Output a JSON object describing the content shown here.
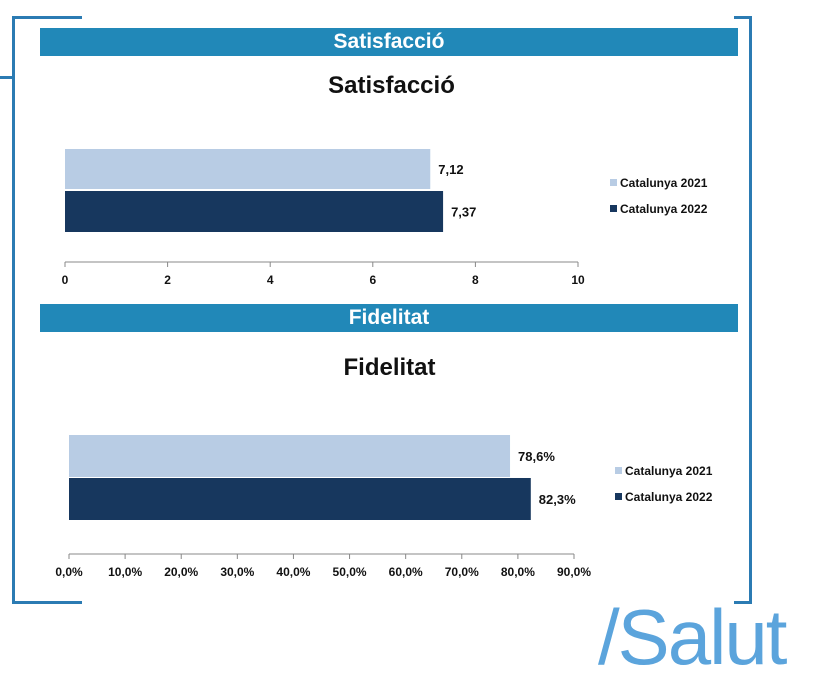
{
  "panels": [
    {
      "banner": "Satisfacció"
    },
    {
      "banner": "Fidelitat"
    }
  ],
  "logo_text": "/Salut",
  "colors": {
    "banner": "#2188b8",
    "series_2021": "#b8cce4",
    "series_2022": "#17375e",
    "frame": "#2b7bb3"
  },
  "chart_data": [
    {
      "type": "bar",
      "orientation": "horizontal",
      "title": "Satisfacció",
      "series": [
        {
          "name": "Catalunya 2021",
          "values": [
            7.12
          ],
          "labels": [
            "7,12"
          ]
        },
        {
          "name": "Catalunya 2022",
          "values": [
            7.37
          ],
          "labels": [
            "7,37"
          ]
        }
      ],
      "xlim": [
        0,
        10
      ],
      "ticks": [
        0,
        2,
        4,
        6,
        8,
        10
      ],
      "tick_labels": [
        "0",
        "2",
        "4",
        "6",
        "8",
        "10"
      ],
      "legend": "right"
    },
    {
      "type": "bar",
      "orientation": "horizontal",
      "title": "Fidelitat",
      "series": [
        {
          "name": "Catalunya 2021",
          "values": [
            78.6
          ],
          "labels": [
            "78,6%"
          ]
        },
        {
          "name": "Catalunya 2022",
          "values": [
            82.3
          ],
          "labels": [
            "82,3%"
          ]
        }
      ],
      "xlim": [
        0,
        90
      ],
      "ticks": [
        0,
        10,
        20,
        30,
        40,
        50,
        60,
        70,
        80,
        90
      ],
      "tick_labels": [
        "0,0%",
        "10,0%",
        "20,0%",
        "30,0%",
        "40,0%",
        "50,0%",
        "60,0%",
        "70,0%",
        "80,0%",
        "90,0%"
      ],
      "legend": "right"
    }
  ]
}
